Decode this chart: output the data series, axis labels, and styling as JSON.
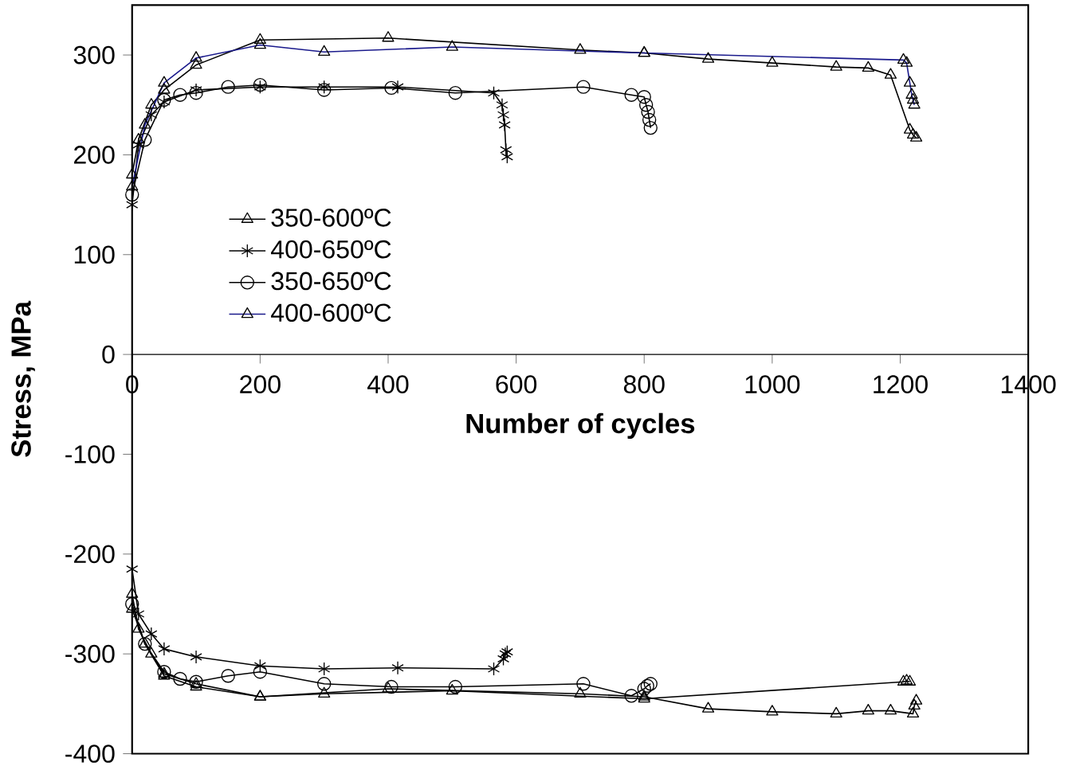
{
  "chart_data": {
    "type": "line",
    "xlabel": "Number of cycles",
    "ylabel": "Stress, MPa",
    "xlim": [
      0,
      1400
    ],
    "xticks": [
      0,
      200,
      400,
      600,
      800,
      1000,
      1200,
      1400
    ],
    "ylim": [
      -400,
      350
    ],
    "yticks": [
      -400,
      -300,
      -200,
      -100,
      0,
      100,
      200,
      300
    ],
    "grid": false,
    "legend": "left",
    "line_style": "solid",
    "series": [
      {
        "name": "350-600ºC",
        "color": "#000000",
        "marker": "triangle",
        "x": [
          0,
          10,
          30,
          50,
          100,
          200,
          400,
          700,
          800,
          900,
          1000,
          1100,
          1150,
          1185,
          1215,
          1220,
          1225
        ],
        "values": [
          180,
          215,
          250,
          265,
          290,
          315,
          317,
          305,
          302,
          296,
          292,
          288,
          287,
          280,
          225,
          220,
          217
        ]
      },
      {
        "name": "400-650ºC",
        "color": "#000000",
        "marker": "cross",
        "x": [
          0,
          10,
          30,
          50,
          100,
          200,
          300,
          415,
          565,
          578,
          580,
          582,
          584,
          586
        ],
        "values": [
          150,
          210,
          240,
          253,
          265,
          268,
          268,
          268,
          262,
          250,
          240,
          230,
          205,
          198
        ]
      },
      {
        "name": "350-650ºC",
        "color": "#000000",
        "marker": "circle",
        "x": [
          0,
          20,
          50,
          75,
          100,
          150,
          200,
          300,
          405,
          505,
          705,
          780,
          800,
          803,
          806,
          808,
          810
        ],
        "values": [
          160,
          215,
          255,
          260,
          262,
          268,
          270,
          265,
          267,
          262,
          268,
          260,
          258,
          250,
          243,
          235,
          227
        ]
      },
      {
        "name": "400-600ºC",
        "color": "#1a1a8c",
        "marker": "triangle",
        "x": [
          0,
          20,
          50,
          100,
          200,
          300,
          500,
          800,
          1205,
          1210,
          1215,
          1218,
          1220,
          1222
        ],
        "values": [
          168,
          230,
          272,
          297,
          310,
          303,
          308,
          302,
          295,
          292,
          272,
          260,
          255,
          250
        ]
      },
      {
        "color": "#000000",
        "marker": "triangle",
        "x": [
          0,
          10,
          30,
          50,
          100,
          200,
          400,
          700,
          800,
          900,
          1000,
          1100,
          1150,
          1185,
          1220,
          1222,
          1225
        ],
        "values": [
          -240,
          -275,
          -300,
          -320,
          -330,
          -343,
          -335,
          -340,
          -343,
          -355,
          -358,
          -360,
          -357,
          -357,
          -360,
          -352,
          -347
        ]
      },
      {
        "color": "#000000",
        "marker": "cross",
        "x": [
          0,
          10,
          30,
          50,
          100,
          200,
          300,
          415,
          565,
          580,
          583,
          586
        ],
        "values": [
          -215,
          -260,
          -280,
          -295,
          -303,
          -312,
          -315,
          -314,
          -315,
          -305,
          -300,
          -298
        ]
      },
      {
        "color": "#000000",
        "marker": "circle",
        "x": [
          0,
          20,
          50,
          75,
          100,
          150,
          200,
          300,
          405,
          505,
          705,
          780,
          800,
          805,
          810
        ],
        "values": [
          -250,
          -290,
          -318,
          -325,
          -328,
          -322,
          -318,
          -330,
          -333,
          -333,
          -330,
          -342,
          -335,
          -332,
          -330
        ]
      },
      {
        "color": "#000000",
        "marker": "triangle",
        "x": [
          0,
          20,
          50,
          100,
          200,
          300,
          500,
          800,
          1205,
          1210,
          1215
        ],
        "values": [
          -255,
          -290,
          -322,
          -333,
          -343,
          -340,
          -337,
          -345,
          -328,
          -327,
          -328
        ]
      }
    ]
  }
}
